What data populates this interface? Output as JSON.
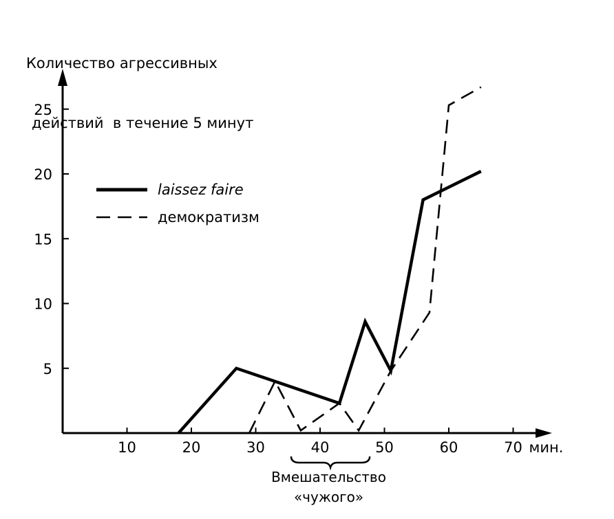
{
  "chart_data": {
    "type": "line",
    "title": "",
    "ylabel_lines": [
      "Количество агрессивных",
      "действий  в течение 5 минут"
    ],
    "xlabel": "",
    "x_unit": "мин.",
    "xlim": [
      0,
      75
    ],
    "ylim": [
      0,
      27
    ],
    "x_ticks": [
      10,
      20,
      30,
      40,
      50,
      60,
      70
    ],
    "y_ticks": [
      5,
      10,
      15,
      20,
      25
    ],
    "legend_position": "upper-left",
    "series": [
      {
        "name": "laissez faire",
        "style": "solid",
        "x": [
          18,
          27,
          43,
          47,
          51,
          56,
          65
        ],
        "y": [
          0,
          5,
          2.3,
          8.6,
          4.8,
          18,
          20.2
        ]
      },
      {
        "name": "демократизм",
        "style": "dashed",
        "x": [
          29,
          33,
          37,
          43,
          46,
          51,
          57,
          60,
          65
        ],
        "y": [
          0,
          4,
          0.2,
          2.3,
          0.2,
          4.8,
          9.3,
          25.3,
          26.7
        ]
      }
    ],
    "annotation": {
      "lines": [
        "Вмешательство",
        "«чужого»"
      ],
      "x_start": 37,
      "x_end": 46
    }
  }
}
